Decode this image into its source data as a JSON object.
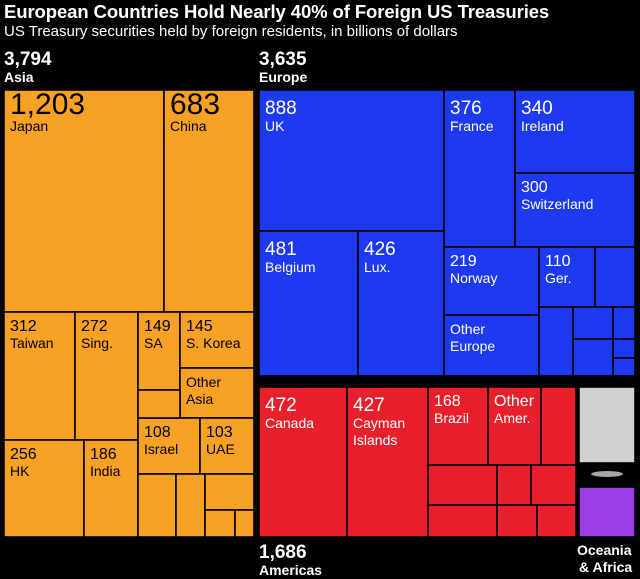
{
  "title": "European Countries Hold Nearly 40% of Foreign US Treasuries",
  "subtitle": "US Treasury securities held by foreign residents, in billions of dollars",
  "colors": {
    "asia": "#f7a125",
    "europe": "#1d3af0",
    "americas": "#e8202b",
    "other_light": "#d0d0d0",
    "other_purple": "#9b3ee8",
    "background": "#000000"
  },
  "regions": {
    "asia": {
      "total": "3,794",
      "name": "Asia"
    },
    "europe": {
      "total": "3,635",
      "name": "Europe"
    },
    "americas": {
      "total": "1,686",
      "name": "Americas"
    },
    "oceania_africa": {
      "name_line1": "Oceania",
      "name_line2": "& Africa"
    }
  },
  "chart_data": {
    "type": "treemap",
    "title": "European Countries Hold Nearly 40% of Foreign US Treasuries",
    "subtitle": "US Treasury securities held by foreign residents, in billions of dollars",
    "units": "billions of dollars",
    "regions": [
      {
        "name": "Asia",
        "total": 3794,
        "labeled": [
          {
            "name": "Japan",
            "value": 1203
          },
          {
            "name": "China",
            "value": 683
          },
          {
            "name": "Taiwan",
            "value": 312
          },
          {
            "name": "Sing.",
            "value": 272
          },
          {
            "name": "SA",
            "value": 149
          },
          {
            "name": "S. Korea",
            "value": 145
          },
          {
            "name": "Other Asia",
            "value": null
          },
          {
            "name": "HK",
            "value": 256
          },
          {
            "name": "India",
            "value": 186
          },
          {
            "name": "Israel",
            "value": 108
          },
          {
            "name": "UAE",
            "value": 103
          }
        ]
      },
      {
        "name": "Europe",
        "total": 3635,
        "labeled": [
          {
            "name": "UK",
            "value": 888
          },
          {
            "name": "France",
            "value": 376
          },
          {
            "name": "Ireland",
            "value": 340
          },
          {
            "name": "Switzerland",
            "value": 300
          },
          {
            "name": "Belgium",
            "value": 481
          },
          {
            "name": "Lux.",
            "value": 426
          },
          {
            "name": "Norway",
            "value": 219
          },
          {
            "name": "Ger.",
            "value": 110
          },
          {
            "name": "Other Europe",
            "value": null
          }
        ]
      },
      {
        "name": "Americas",
        "total": 1686,
        "labeled": [
          {
            "name": "Canada",
            "value": 472
          },
          {
            "name": "Cayman Islands",
            "value": 427
          },
          {
            "name": "Brazil",
            "value": 168
          },
          {
            "name": "Other Amer.",
            "value": null
          }
        ]
      },
      {
        "name": "Oceania & Africa",
        "total": null,
        "labeled": []
      }
    ],
    "tiles": [
      {
        "id": "japan",
        "region": "asia",
        "value": "1,203",
        "label": "Japan"
      },
      {
        "id": "china",
        "region": "asia",
        "value": "683",
        "label": "China"
      },
      {
        "id": "taiwan",
        "region": "asia",
        "value": "312",
        "label": "Taiwan"
      },
      {
        "id": "singapore",
        "region": "asia",
        "value": "272",
        "label": "Sing."
      },
      {
        "id": "saudi-arabia",
        "region": "asia",
        "value": "149",
        "label": "SA"
      },
      {
        "id": "south-korea",
        "region": "asia",
        "value": "145",
        "label": "S. Korea"
      },
      {
        "id": "other-asia",
        "region": "asia",
        "value": "",
        "label": "Other",
        "label2": "Asia"
      },
      {
        "id": "hong-kong",
        "region": "asia",
        "value": "256",
        "label": "HK"
      },
      {
        "id": "india",
        "region": "asia",
        "value": "186",
        "label": "India"
      },
      {
        "id": "israel",
        "region": "asia",
        "value": "108",
        "label": "Israel"
      },
      {
        "id": "uae",
        "region": "asia",
        "value": "103",
        "label": "UAE"
      },
      {
        "id": "asia-small-1",
        "region": "asia",
        "value": "",
        "label": ""
      },
      {
        "id": "asia-small-2",
        "region": "asia",
        "value": "",
        "label": ""
      },
      {
        "id": "asia-small-3",
        "region": "asia",
        "value": "",
        "label": ""
      },
      {
        "id": "asia-small-4",
        "region": "asia",
        "value": "",
        "label": ""
      },
      {
        "id": "asia-small-5",
        "region": "asia",
        "value": "",
        "label": ""
      },
      {
        "id": "asia-small-6",
        "region": "asia",
        "value": "",
        "label": ""
      },
      {
        "id": "uk",
        "region": "europe",
        "value": "888",
        "label": "UK"
      },
      {
        "id": "france",
        "region": "europe",
        "value": "376",
        "label": "France"
      },
      {
        "id": "ireland",
        "region": "europe",
        "value": "340",
        "label": "Ireland"
      },
      {
        "id": "switzerland",
        "region": "europe",
        "value": "300",
        "label": "Switzerland"
      },
      {
        "id": "belgium",
        "region": "europe",
        "value": "481",
        "label": "Belgium"
      },
      {
        "id": "luxembourg",
        "region": "europe",
        "value": "426",
        "label": "Lux."
      },
      {
        "id": "norway",
        "region": "europe",
        "value": "219",
        "label": "Norway"
      },
      {
        "id": "germany",
        "region": "europe",
        "value": "110",
        "label": "Ger."
      },
      {
        "id": "other-europe",
        "region": "europe",
        "value": "",
        "label": "Other",
        "label2": "Europe"
      },
      {
        "id": "europe-small-1",
        "region": "europe",
        "value": "",
        "label": ""
      },
      {
        "id": "europe-small-2",
        "region": "europe",
        "value": "",
        "label": ""
      },
      {
        "id": "europe-small-3",
        "region": "europe",
        "value": "",
        "label": ""
      },
      {
        "id": "europe-small-4",
        "region": "europe",
        "value": "",
        "label": ""
      },
      {
        "id": "europe-small-5",
        "region": "europe",
        "value": "",
        "label": ""
      },
      {
        "id": "europe-small-6",
        "region": "europe",
        "value": "",
        "label": ""
      },
      {
        "id": "europe-small-7",
        "region": "europe",
        "value": "",
        "label": ""
      },
      {
        "id": "canada",
        "region": "americas",
        "value": "472",
        "label": "Canada"
      },
      {
        "id": "cayman-islands",
        "region": "americas",
        "value": "427",
        "label": "Cayman",
        "label2": "Islands"
      },
      {
        "id": "brazil",
        "region": "americas",
        "value": "168",
        "label": "Brazil"
      },
      {
        "id": "other-americas",
        "region": "americas",
        "value": "Other",
        "label": "Amer."
      },
      {
        "id": "americas-small-1",
        "region": "americas",
        "value": "",
        "label": ""
      },
      {
        "id": "americas-small-2",
        "region": "americas",
        "value": "",
        "label": ""
      },
      {
        "id": "americas-small-3",
        "region": "americas",
        "value": "",
        "label": ""
      },
      {
        "id": "americas-small-4",
        "region": "americas",
        "value": "",
        "label": ""
      },
      {
        "id": "americas-small-5",
        "region": "americas",
        "value": "",
        "label": ""
      },
      {
        "id": "americas-small-6",
        "region": "americas",
        "value": "",
        "label": ""
      },
      {
        "id": "americas-small-7",
        "region": "americas",
        "value": "",
        "label": ""
      },
      {
        "id": "oceania-africa-1",
        "region": "other_light",
        "value": "",
        "label": ""
      },
      {
        "id": "oceania-africa-2",
        "region": "other_purple",
        "value": "",
        "label": ""
      }
    ]
  }
}
